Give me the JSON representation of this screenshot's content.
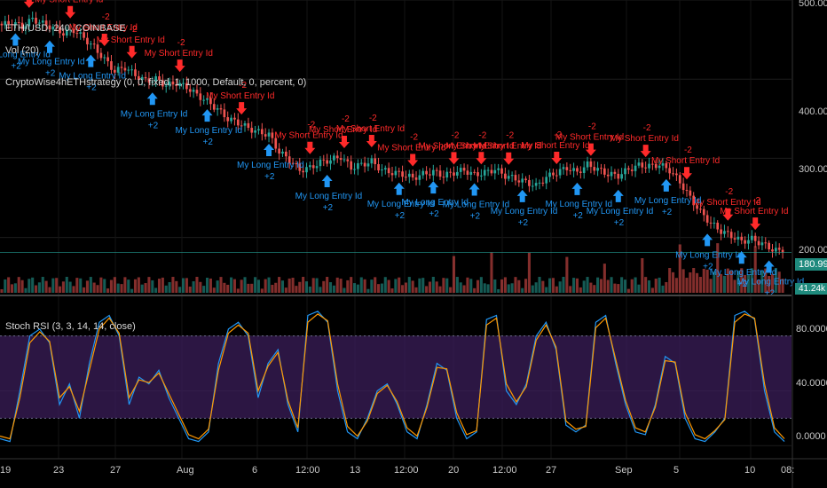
{
  "header": {
    "symbol_line": "ETH/USD, 240, COINBASE",
    "volume_line": "Vol (20)",
    "strategy_line": "CryptoWise4hETHstrategy (0, 0, fixed, 1, 1000, Default, 0, percent, 0)",
    "stoch_line": "Stoch RSI (3, 3, 14, 14, close)"
  },
  "badges": {
    "last_price": "180.99",
    "last_volume": "41.24k"
  },
  "colors": {
    "background": "#000000",
    "bull": "#26a69a",
    "bear": "#ef5350",
    "long": "#2196f3",
    "short": "#ff2a2a",
    "k_line": "#2196f3",
    "d_line": "#ff9800",
    "rsi_band": "#3b1d5a"
  },
  "chart_data": [
    {
      "type": "candlestick",
      "title": "ETH/USD, 240, COINBASE",
      "ylim": [
        130,
        500
      ],
      "y_ticks": [
        "500.00",
        "400.00",
        "300.00",
        "200.00"
      ],
      "x_ticks": [
        "19",
        "23",
        "27",
        "Aug",
        "6",
        "12:00",
        "13",
        "12:00",
        "20",
        "12:00",
        "27",
        "Sep",
        "5",
        "10",
        "08:"
      ],
      "price_path": [
        468,
        472,
        466,
        476,
        470,
        465,
        458,
        462,
        452,
        440,
        425,
        410,
        415,
        405,
        398,
        400,
        392,
        395,
        390,
        380,
        372,
        362,
        350,
        345,
        338,
        333,
        330,
        308,
        298,
        285,
        288,
        295,
        298,
        302,
        288,
        292,
        296,
        285,
        282,
        280,
        275,
        280,
        283,
        278,
        282,
        285,
        279,
        282,
        286,
        278,
        274,
        270,
        265,
        276,
        282,
        288,
        282,
        292,
        286,
        280,
        278,
        286,
        291,
        290,
        292,
        285,
        270,
        250,
        232,
        218,
        208,
        202,
        195,
        198,
        192,
        185,
        181
      ],
      "last_price": 180.99,
      "volume_label": "Vol (20)",
      "volume_last": "41.24k",
      "signals": {
        "short_label": "My Short Entry Id",
        "short_qty": "-2",
        "long_label": "My Long Entry Id",
        "long_qty": "+2"
      }
    },
    {
      "type": "line",
      "title": "Stoch RSI (3, 3, 14, 14, close)",
      "ylim": [
        -5,
        105
      ],
      "y_ticks": [
        "80.0000",
        "40.0000",
        "0.0000"
      ],
      "band": [
        20,
        80
      ],
      "series": [
        {
          "values": [
            5,
            3,
            40,
            80,
            85,
            75,
            30,
            45,
            20,
            60,
            90,
            95,
            80,
            30,
            50,
            45,
            55,
            35,
            20,
            5,
            3,
            10,
            60,
            85,
            90,
            80,
            35,
            60,
            70,
            30,
            10,
            95,
            98,
            90,
            40,
            10,
            5,
            20,
            40,
            45,
            30,
            10,
            5,
            30,
            60,
            55,
            20,
            5,
            10,
            92,
            95,
            40,
            30,
            45,
            80,
            90,
            70,
            15,
            10,
            15,
            90,
            95,
            60,
            30,
            10,
            8,
            30,
            65,
            60,
            20,
            5,
            3,
            10,
            20,
            95,
            98,
            92,
            40,
            10,
            3
          ]
        },
        {
          "values": [
            7,
            5,
            35,
            75,
            83,
            76,
            35,
            43,
            25,
            55,
            85,
            93,
            82,
            35,
            48,
            46,
            53,
            38,
            23,
            8,
            5,
            12,
            55,
            82,
            88,
            82,
            40,
            58,
            68,
            33,
            13,
            90,
            96,
            91,
            45,
            14,
            7,
            18,
            38,
            44,
            32,
            13,
            7,
            28,
            57,
            56,
            24,
            8,
            11,
            88,
            93,
            45,
            32,
            43,
            77,
            88,
            72,
            18,
            12,
            14,
            86,
            93,
            63,
            33,
            13,
            10,
            28,
            62,
            61,
            24,
            8,
            5,
            11,
            19,
            90,
            96,
            93,
            45,
            13,
            5
          ]
        }
      ]
    }
  ]
}
